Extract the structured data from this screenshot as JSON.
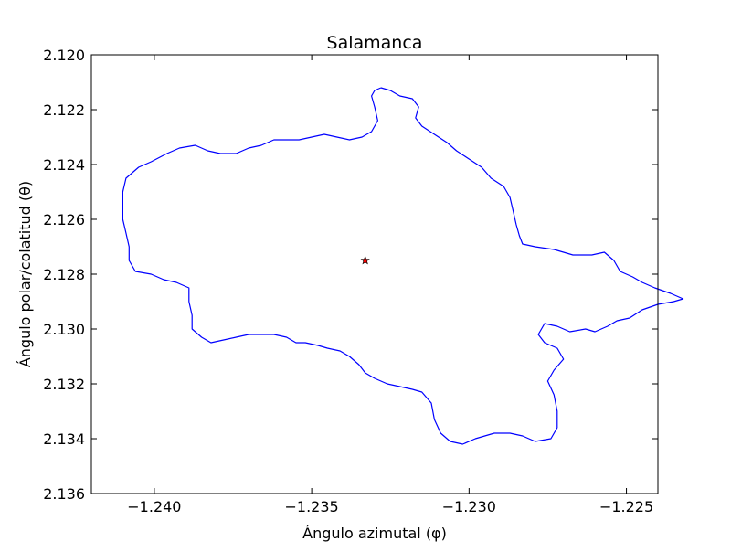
{
  "chart_data": {
    "type": "line",
    "title": "Salamanca",
    "xlabel": "Ángulo azimutal (φ)",
    "ylabel": "Ángulo polar/colatitud (θ)",
    "xlim": [
      -1.242,
      -1.224
    ],
    "ylim": [
      2.136,
      2.12
    ],
    "y_axis_inverted": true,
    "grid": false,
    "legend": "none",
    "x_ticks": [
      -1.24,
      -1.235,
      -1.23,
      -1.225
    ],
    "x_tick_labels": [
      "−1.240",
      "−1.235",
      "−1.230",
      "−1.225"
    ],
    "y_ticks": [
      2.12,
      2.122,
      2.124,
      2.126,
      2.128,
      2.13,
      2.132,
      2.134,
      2.136
    ],
    "y_tick_labels": [
      "2.120",
      "2.122",
      "2.124",
      "2.126",
      "2.128",
      "2.130",
      "2.132",
      "2.134",
      "2.136"
    ],
    "series": [
      {
        "kind": "boundary",
        "color": "#0000ff",
        "points": [
          [
            -1.2328,
            2.1212
          ],
          [
            -1.2325,
            2.1213
          ],
          [
            -1.2322,
            2.1215
          ],
          [
            -1.2318,
            2.1216
          ],
          [
            -1.2316,
            2.1219
          ],
          [
            -1.2317,
            2.1223
          ],
          [
            -1.2315,
            2.1226
          ],
          [
            -1.2311,
            2.1229
          ],
          [
            -1.2307,
            2.1232
          ],
          [
            -1.2304,
            2.1235
          ],
          [
            -1.23,
            2.1238
          ],
          [
            -1.2296,
            2.1241
          ],
          [
            -1.2293,
            2.1245
          ],
          [
            -1.2289,
            2.1248
          ],
          [
            -1.2287,
            2.1252
          ],
          [
            -1.2286,
            2.1257
          ],
          [
            -1.2285,
            2.1262
          ],
          [
            -1.2284,
            2.1266
          ],
          [
            -1.2283,
            2.1269
          ],
          [
            -1.2279,
            2.127
          ],
          [
            -1.2273,
            2.1271
          ],
          [
            -1.2267,
            2.1273
          ],
          [
            -1.2261,
            2.1273
          ],
          [
            -1.2257,
            2.1272
          ],
          [
            -1.2254,
            2.1275
          ],
          [
            -1.2252,
            2.1279
          ],
          [
            -1.2248,
            2.1281
          ],
          [
            -1.2245,
            2.1283
          ],
          [
            -1.2241,
            2.1285
          ],
          [
            -1.2236,
            2.1287
          ],
          [
            -1.2232,
            2.1289
          ],
          [
            -1.2235,
            2.129
          ],
          [
            -1.224,
            2.1291
          ],
          [
            -1.2245,
            2.1293
          ],
          [
            -1.2249,
            2.1296
          ],
          [
            -1.2253,
            2.1297
          ],
          [
            -1.2256,
            2.1299
          ],
          [
            -1.226,
            2.1301
          ],
          [
            -1.2263,
            2.13
          ],
          [
            -1.2268,
            2.1301
          ],
          [
            -1.2272,
            2.1299
          ],
          [
            -1.2276,
            2.1298
          ],
          [
            -1.2278,
            2.1302
          ],
          [
            -1.2276,
            2.1305
          ],
          [
            -1.2272,
            2.1307
          ],
          [
            -1.227,
            2.1311
          ],
          [
            -1.2273,
            2.1315
          ],
          [
            -1.2275,
            2.1319
          ],
          [
            -1.2273,
            2.1324
          ],
          [
            -1.2272,
            2.133
          ],
          [
            -1.2272,
            2.1336
          ],
          [
            -1.2274,
            2.134
          ],
          [
            -1.2279,
            2.1341
          ],
          [
            -1.2283,
            2.1339
          ],
          [
            -1.2287,
            2.1338
          ],
          [
            -1.2292,
            2.1338
          ],
          [
            -1.2298,
            2.134
          ],
          [
            -1.2302,
            2.1342
          ],
          [
            -1.2306,
            2.1341
          ],
          [
            -1.2309,
            2.1338
          ],
          [
            -1.2311,
            2.1333
          ],
          [
            -1.2312,
            2.1327
          ],
          [
            -1.2315,
            2.1323
          ],
          [
            -1.2318,
            2.1322
          ],
          [
            -1.2322,
            2.1321
          ],
          [
            -1.2326,
            2.132
          ],
          [
            -1.233,
            2.1318
          ],
          [
            -1.2333,
            2.1316
          ],
          [
            -1.2335,
            2.1313
          ],
          [
            -1.2338,
            2.131
          ],
          [
            -1.2341,
            2.1308
          ],
          [
            -1.2345,
            2.1307
          ],
          [
            -1.2348,
            2.1306
          ],
          [
            -1.2352,
            2.1305
          ],
          [
            -1.2355,
            2.1305
          ],
          [
            -1.2358,
            2.1303
          ],
          [
            -1.2362,
            2.1302
          ],
          [
            -1.2366,
            2.1302
          ],
          [
            -1.237,
            2.1302
          ],
          [
            -1.2374,
            2.1303
          ],
          [
            -1.2378,
            2.1304
          ],
          [
            -1.2382,
            2.1305
          ],
          [
            -1.2385,
            2.1303
          ],
          [
            -1.2388,
            2.13
          ],
          [
            -1.2388,
            2.1295
          ],
          [
            -1.2389,
            2.129
          ],
          [
            -1.2389,
            2.1285
          ],
          [
            -1.2393,
            2.1283
          ],
          [
            -1.2397,
            2.1282
          ],
          [
            -1.2401,
            2.128
          ],
          [
            -1.2406,
            2.1279
          ],
          [
            -1.2408,
            2.1275
          ],
          [
            -1.2408,
            2.127
          ],
          [
            -1.2409,
            2.1265
          ],
          [
            -1.241,
            2.126
          ],
          [
            -1.241,
            2.1255
          ],
          [
            -1.241,
            2.125
          ],
          [
            -1.2409,
            2.1245
          ],
          [
            -1.2405,
            2.1241
          ],
          [
            -1.2401,
            2.1239
          ],
          [
            -1.2396,
            2.1236
          ],
          [
            -1.2392,
            2.1234
          ],
          [
            -1.2387,
            2.1233
          ],
          [
            -1.2383,
            2.1235
          ],
          [
            -1.2379,
            2.1236
          ],
          [
            -1.2374,
            2.1236
          ],
          [
            -1.237,
            2.1234
          ],
          [
            -1.2366,
            2.1233
          ],
          [
            -1.2362,
            2.1231
          ],
          [
            -1.2358,
            2.1231
          ],
          [
            -1.2354,
            2.1231
          ],
          [
            -1.235,
            2.123
          ],
          [
            -1.2346,
            2.1229
          ],
          [
            -1.2342,
            2.123
          ],
          [
            -1.2338,
            2.1231
          ],
          [
            -1.2334,
            2.123
          ],
          [
            -1.2331,
            2.1228
          ],
          [
            -1.2329,
            2.1224
          ],
          [
            -1.233,
            2.1219
          ],
          [
            -1.2331,
            2.1215
          ],
          [
            -1.233,
            2.1213
          ],
          [
            -1.2328,
            2.1212
          ]
        ]
      },
      {
        "kind": "centroid",
        "marker": "star",
        "color": "#ff0000",
        "points": [
          [
            -1.2333,
            2.1275
          ]
        ]
      }
    ]
  }
}
